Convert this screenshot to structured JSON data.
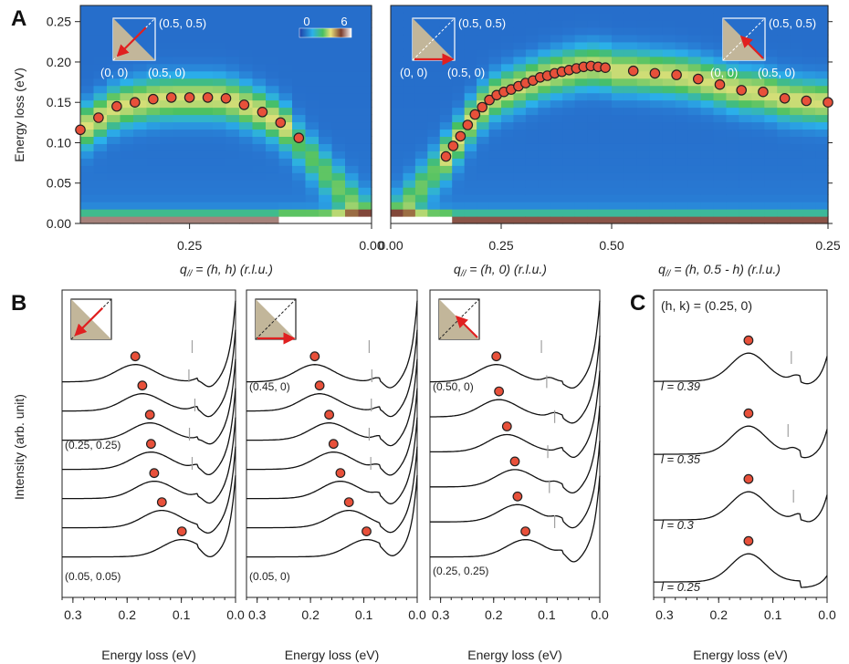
{
  "colors": {
    "marker": "#e8503a",
    "arrow": "#e02020",
    "triangle": "#c2b69a",
    "map_low": "#2a4fb0",
    "map_high": "#ffffff"
  },
  "panel_letters": [
    "A",
    "B",
    "C"
  ],
  "chart_data": [
    {
      "panel": "A",
      "type": "heatmap",
      "ylabel": "Energy loss (eV)",
      "ylim": [
        0,
        0.27
      ],
      "yticks": [
        "0.00",
        "0.05",
        "0.10",
        "0.15",
        "0.20",
        "0.25"
      ],
      "colorbar": {
        "min": "0",
        "max": "6"
      },
      "segments": [
        {
          "xlabel": "q// = (h, h) (r.l.u.)",
          "x_prefix": "q",
          "x_sub": "//",
          "x_rest": " = (h, h) (r.l.u.)",
          "x_from": 0.4,
          "x_to": 0.0,
          "ticks": [
            {
              "v": 0.25,
              "label": "0.25"
            },
            {
              "v": 0.0,
              "label": "0.00"
            }
          ]
        },
        {
          "xlabel": "q// = (h, 0) (r.l.u.)",
          "x_prefix": "q",
          "x_sub": "//",
          "x_rest": " = (h, 0) (r.l.u.)",
          "x_from": 0.0,
          "x_to": 0.5,
          "ticks": [
            {
              "v": 0.0,
              "label": "0.00"
            },
            {
              "v": 0.25,
              "label": "0.25"
            },
            {
              "v": 0.5,
              "label": "0.50"
            }
          ]
        },
        {
          "xlabel": "q// = (h, 0.5 - h) (r.l.u.)",
          "x_prefix": "q",
          "x_sub": "//",
          "x_rest": " = (h, 0.5 - h) (r.l.u.)",
          "x_from": 0.5,
          "x_to": 0.25,
          "ticks": [
            {
              "v": 0.25,
              "label": "0.25"
            }
          ]
        }
      ],
      "series": [
        {
          "segment": 0,
          "h": [
            0.4,
            0.375,
            0.35,
            0.325,
            0.3,
            0.275,
            0.25,
            0.225,
            0.2,
            0.175,
            0.15,
            0.125,
            0.1
          ],
          "energy": [
            0.116,
            0.131,
            0.145,
            0.15,
            0.154,
            0.156,
            0.156,
            0.156,
            0.155,
            0.147,
            0.138,
            0.125,
            0.106
          ]
        },
        {
          "segment": 1,
          "h": [
            0.125,
            0.1414,
            0.1578,
            0.1742,
            0.1906,
            0.207,
            0.2234,
            0.2398,
            0.2562,
            0.2726,
            0.289,
            0.3054,
            0.3218,
            0.3382,
            0.3546,
            0.371,
            0.3874,
            0.4038,
            0.4202,
            0.4366,
            0.453,
            0.4694,
            0.4858
          ],
          "energy": [
            0.083,
            0.096,
            0.108,
            0.122,
            0.135,
            0.144,
            0.153,
            0.159,
            0.163,
            0.166,
            0.17,
            0.174,
            0.177,
            0.181,
            0.183,
            0.186,
            0.188,
            0.19,
            0.192,
            0.194,
            0.195,
            0.194,
            0.193
          ]
        },
        {
          "segment": 2,
          "h": [
            0.475,
            0.45,
            0.425,
            0.4,
            0.375,
            0.35,
            0.325,
            0.3,
            0.275,
            0.25
          ],
          "energy": [
            0.189,
            0.186,
            0.184,
            0.179,
            0.172,
            0.165,
            0.163,
            0.155,
            0.152,
            0.15
          ]
        }
      ],
      "insets": [
        {
          "corner_top": "(0.5, 0.5)",
          "corner_left": "(0, 0)",
          "corner_right": "(0.5, 0)",
          "arrow": "diagonal-down"
        },
        {
          "corner_top": "(0.5, 0.5)",
          "corner_left": "(0, 0)",
          "corner_right": "(0.5, 0)",
          "arrow": "bottom-right"
        },
        {
          "corner_top": "(0.5, 0.5)",
          "corner_left": "(0, 0)",
          "corner_right": "(0.5, 0)",
          "arrow": "diagonal-up"
        }
      ]
    },
    {
      "panel": "B",
      "type": "line",
      "ylabel": "Intensity (arb. unit)",
      "xlabel": "Energy loss (eV)",
      "xlim": [
        0.32,
        0.0
      ],
      "xticks": [
        "0.3",
        "0.2",
        "0.1",
        "0.0"
      ],
      "subpanels": [
        {
          "arrow": "diagonal-down",
          "label_top": "(0.25, 0.25)",
          "label_bottom": "(0.05, 0.05)",
          "peaks": [
            0.185,
            0.172,
            0.158,
            0.156,
            0.15,
            0.136,
            0.099
          ],
          "gray_marks": [
            0.08,
            0.086,
            0.075,
            0.085,
            0.08,
            null,
            null
          ]
        },
        {
          "arrow": "bottom-right",
          "label_top": "(0.45, 0)",
          "label_bottom": "(0.05, 0)",
          "peaks": [
            0.192,
            0.183,
            0.165,
            0.157,
            0.144,
            0.128,
            0.095
          ],
          "gray_marks": [
            0.09,
            0.085,
            0.086,
            0.09,
            0.087,
            null,
            null
          ]
        },
        {
          "arrow": "diagonal-up",
          "label_top": "(0.50, 0)",
          "label_bottom": "(0.25, 0.25)",
          "peaks": [
            0.195,
            0.19,
            0.175,
            0.16,
            0.155,
            0.14
          ],
          "gray_marks": [
            0.11,
            0.1,
            0.085,
            0.098,
            0.095,
            0.085
          ]
        }
      ]
    },
    {
      "panel": "C",
      "type": "line",
      "xlabel": "Energy loss (eV)",
      "xlim": [
        0.32,
        0.0
      ],
      "xticks": [
        "0.3",
        "0.2",
        "0.1",
        "0.0"
      ],
      "header": "(h, k) = (0.25, 0)",
      "curves": [
        {
          "l_label": "l = 0.39",
          "peak": 0.145,
          "gray_mark": 0.066
        },
        {
          "l_label": "l = 0.35",
          "peak": 0.145,
          "gray_mark": 0.072
        },
        {
          "l_label": "l = 0.3",
          "peak": 0.145,
          "gray_mark": 0.062
        },
        {
          "l_label": "l = 0.25",
          "peak": 0.145,
          "gray_mark": null
        }
      ]
    }
  ]
}
